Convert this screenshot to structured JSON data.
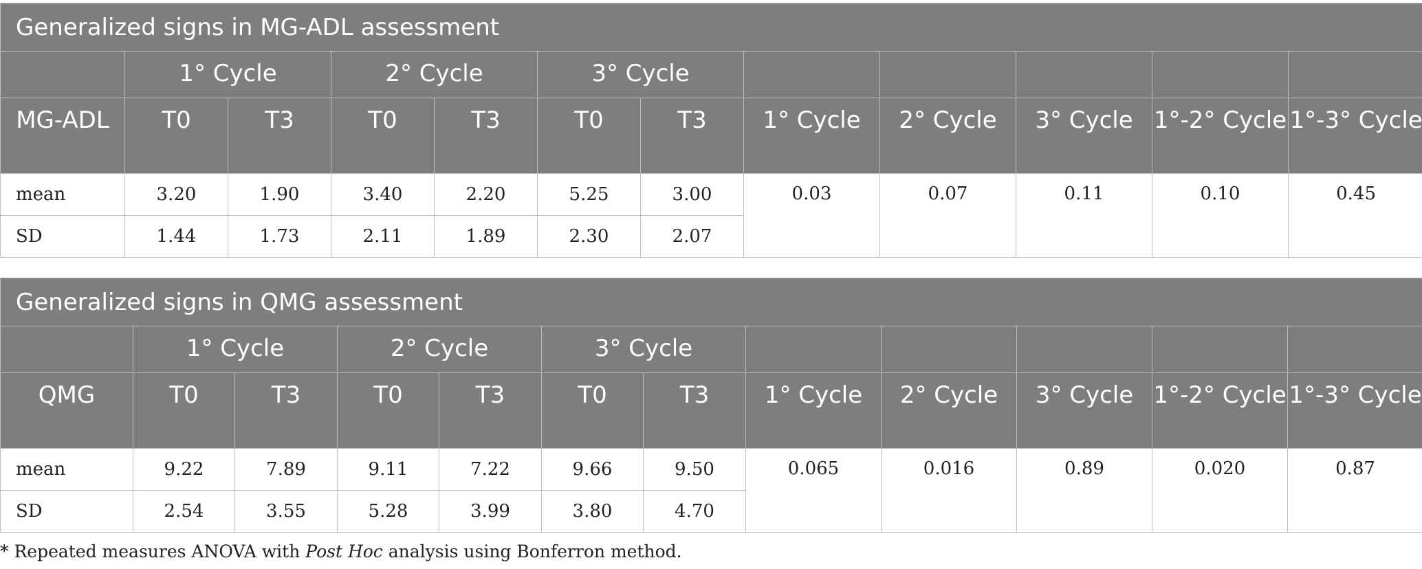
{
  "tables": [
    {
      "title": "Generalized signs in MG-ADL assessment",
      "row_header": "MG-ADL",
      "cycles": [
        "1° Cycle",
        "2° Cycle",
        "3° Cycle"
      ],
      "timepoints": [
        "T0",
        "T3",
        "T0",
        "T3",
        "T0",
        "T3"
      ],
      "p_headers": [
        "1° Cycle",
        "2° Cycle",
        "3° Cycle",
        "1°-2° Cycle",
        "1°-3° Cycle"
      ],
      "rows": [
        {
          "label": "mean",
          "values": [
            "3.20",
            "1.90",
            "3.40",
            "2.20",
            "5.25",
            "3.00"
          ]
        },
        {
          "label": "SD",
          "values": [
            "1.44",
            "1.73",
            "2.11",
            "1.89",
            "2.30",
            "2.07"
          ]
        }
      ],
      "p_values": [
        "0.03",
        "0.07",
        "0.11",
        "0.10",
        "0.45"
      ]
    },
    {
      "title": "Generalized signs in QMG assessment",
      "row_header": "QMG",
      "cycles": [
        "1° Cycle",
        "2° Cycle",
        "3° Cycle"
      ],
      "timepoints": [
        "T0",
        "T3",
        "T0",
        "T3",
        "T0",
        "T3"
      ],
      "p_headers": [
        "1° Cycle",
        "2° Cycle",
        "3° Cycle",
        "1°-2° Cycle",
        "1°-3° Cycle"
      ],
      "rows": [
        {
          "label": "mean",
          "values": [
            "9.22",
            "7.89",
            "9.11",
            "7.22",
            "9.66",
            "9.50"
          ]
        },
        {
          "label": "SD",
          "values": [
            "2.54",
            "3.55",
            "5.28",
            "3.99",
            "3.80",
            "4.70"
          ]
        }
      ],
      "p_values": [
        "0.065",
        "0.016",
        "0.89",
        "0.020",
        "0.87"
      ]
    }
  ],
  "footnote": {
    "prefix": "* Repeated measures ANOVA with ",
    "italic": "Post Hoc",
    "suffix": " analysis using Bonferron method."
  }
}
